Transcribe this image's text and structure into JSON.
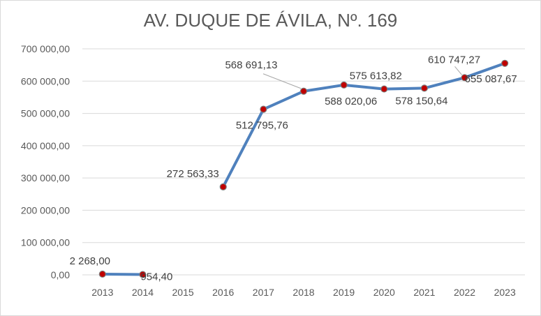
{
  "chart_data": {
    "type": "line",
    "title": "AV. DUQUE DE ÁVILA, Nº. 169",
    "xlabel": "",
    "ylabel": "",
    "categories": [
      "2013",
      "2014",
      "2015",
      "2016",
      "2017",
      "2018",
      "2019",
      "2020",
      "2021",
      "2022",
      "2023"
    ],
    "values": [
      2268.0,
      954.4,
      null,
      272563.33,
      512795.76,
      568691.13,
      588020.06,
      575613.82,
      578150.64,
      610747.27,
      655087.67
    ],
    "data_labels": [
      "2 268,00",
      "954,40",
      "",
      "272 563,33",
      "512 795,76",
      "568 691,13",
      "588 020,06",
      "575 613,82",
      "578 150,64",
      "610 747,27",
      "655 087,67"
    ],
    "ylim": [
      0,
      700000
    ],
    "yticks": [
      0,
      100000,
      200000,
      300000,
      400000,
      500000,
      600000,
      700000
    ],
    "ytick_labels": [
      "0,00",
      "100 000,00",
      "200 000,00",
      "300 000,00",
      "400 000,00",
      "500 000,00",
      "600 000,00",
      "700 000,00"
    ],
    "grid": true,
    "legend": "none",
    "colors": {
      "line": "#4f81bd",
      "marker_fill": "#c00000",
      "marker_edge": "#7f7f7f",
      "grid": "#d9d9d9",
      "text": "#595959"
    }
  }
}
